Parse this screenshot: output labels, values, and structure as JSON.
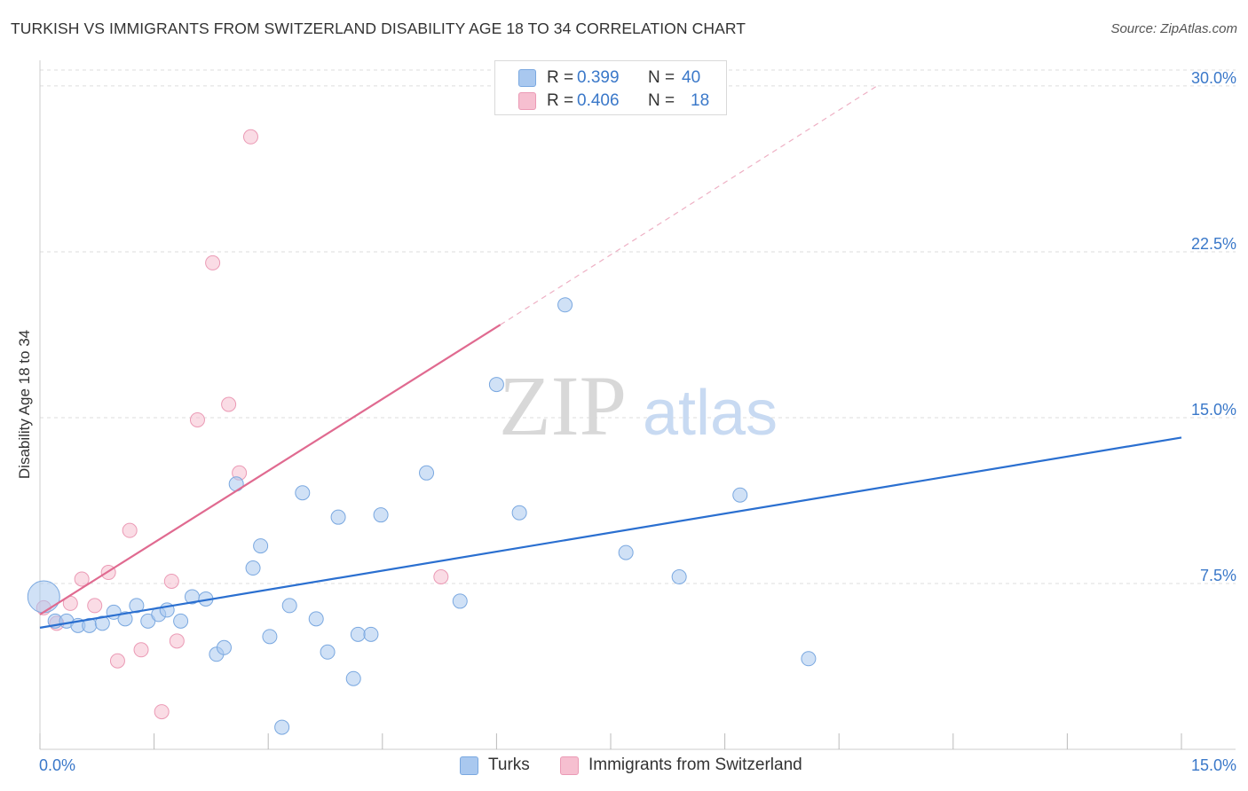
{
  "title": "TURKISH VS IMMIGRANTS FROM SWITZERLAND DISABILITY AGE 18 TO 34 CORRELATION CHART",
  "source": "Source: ZipAtlas.com",
  "watermark": {
    "zip": "ZIP",
    "atlas": "atlas"
  },
  "legend": {
    "rows": [
      {
        "r_label": "R =",
        "r_value": "0.399",
        "n_label": "N =",
        "n_value": "40"
      },
      {
        "r_label": "R =",
        "r_value": "0.406",
        "n_label": "N =",
        "n_value": "18"
      }
    ]
  },
  "bottom_legend": {
    "turks": "Turks",
    "swiss": "Immigrants from Switzerland"
  },
  "colors": {
    "turks_fill": "#a9c8ef",
    "turks_stroke": "#7aa8e0",
    "turks_line": "#2a6fd0",
    "swiss_fill": "#f6bfd0",
    "swiss_stroke": "#eb9ab5",
    "swiss_line": "#e06a90",
    "tick_label": "#3a78c9",
    "grid": "#dddddd"
  },
  "chart_data": {
    "type": "scatter",
    "title": "TURKISH VS IMMIGRANTS FROM SWITZERLAND DISABILITY AGE 18 TO 34 CORRELATION CHART",
    "xlabel": "",
    "ylabel": "Disability Age 18 to 34",
    "xlim": [
      0,
      15
    ],
    "ylim": [
      0,
      31
    ],
    "x_tick_labels": [
      "0.0%",
      "15.0%"
    ],
    "y_ticks": [
      {
        "value": 7.5,
        "label": "7.5%"
      },
      {
        "value": 15.0,
        "label": "15.0%"
      },
      {
        "value": 22.5,
        "label": "22.5%"
      },
      {
        "value": 30.0,
        "label": "30.0%"
      }
    ],
    "series": [
      {
        "name": "Turks",
        "r": 0.399,
        "n": 40,
        "points": [
          {
            "x": 0.05,
            "y": 6.9,
            "size": "large"
          },
          {
            "x": 0.2,
            "y": 5.8
          },
          {
            "x": 0.35,
            "y": 5.8
          },
          {
            "x": 0.5,
            "y": 5.6
          },
          {
            "x": 0.65,
            "y": 5.6
          },
          {
            "x": 0.82,
            "y": 5.7
          },
          {
            "x": 0.97,
            "y": 6.2
          },
          {
            "x": 1.12,
            "y": 5.9
          },
          {
            "x": 1.27,
            "y": 6.5
          },
          {
            "x": 1.42,
            "y": 5.8
          },
          {
            "x": 1.56,
            "y": 6.1
          },
          {
            "x": 1.67,
            "y": 6.3
          },
          {
            "x": 1.85,
            "y": 5.8
          },
          {
            "x": 2.0,
            "y": 6.9
          },
          {
            "x": 2.18,
            "y": 6.8
          },
          {
            "x": 2.32,
            "y": 4.3
          },
          {
            "x": 2.42,
            "y": 4.6
          },
          {
            "x": 2.58,
            "y": 12.0
          },
          {
            "x": 2.8,
            "y": 8.2
          },
          {
            "x": 2.9,
            "y": 9.2
          },
          {
            "x": 3.02,
            "y": 5.1
          },
          {
            "x": 3.18,
            "y": 1.0
          },
          {
            "x": 3.28,
            "y": 6.5
          },
          {
            "x": 3.45,
            "y": 11.6
          },
          {
            "x": 3.63,
            "y": 5.9
          },
          {
            "x": 3.78,
            "y": 4.4
          },
          {
            "x": 3.92,
            "y": 10.5
          },
          {
            "x": 4.12,
            "y": 3.2
          },
          {
            "x": 4.18,
            "y": 5.2
          },
          {
            "x": 4.35,
            "y": 5.2
          },
          {
            "x": 4.48,
            "y": 10.6
          },
          {
            "x": 5.08,
            "y": 12.5
          },
          {
            "x": 5.52,
            "y": 6.7
          },
          {
            "x": 6.0,
            "y": 16.5
          },
          {
            "x": 6.3,
            "y": 10.7
          },
          {
            "x": 6.9,
            "y": 20.1
          },
          {
            "x": 7.7,
            "y": 8.9
          },
          {
            "x": 8.4,
            "y": 7.8
          },
          {
            "x": 9.2,
            "y": 11.5
          },
          {
            "x": 10.1,
            "y": 4.1
          }
        ],
        "trend": {
          "x0": 0.0,
          "y0": 5.5,
          "x1": 15.0,
          "y1": 14.1
        }
      },
      {
        "name": "Immigrants from Switzerland",
        "r": 0.406,
        "n": 18,
        "points": [
          {
            "x": 0.05,
            "y": 6.4
          },
          {
            "x": 0.22,
            "y": 5.7
          },
          {
            "x": 0.4,
            "y": 6.6
          },
          {
            "x": 0.55,
            "y": 7.7
          },
          {
            "x": 0.72,
            "y": 6.5
          },
          {
            "x": 0.9,
            "y": 8.0
          },
          {
            "x": 1.02,
            "y": 4.0
          },
          {
            "x": 1.18,
            "y": 9.9
          },
          {
            "x": 1.33,
            "y": 4.5
          },
          {
            "x": 1.6,
            "y": 1.7
          },
          {
            "x": 1.73,
            "y": 7.6
          },
          {
            "x": 1.8,
            "y": 4.9
          },
          {
            "x": 2.07,
            "y": 14.9
          },
          {
            "x": 2.27,
            "y": 22.0
          },
          {
            "x": 2.48,
            "y": 15.6
          },
          {
            "x": 2.62,
            "y": 12.5
          },
          {
            "x": 2.77,
            "y": 27.7
          },
          {
            "x": 5.27,
            "y": 7.8
          }
        ],
        "trend": {
          "x0": 0.0,
          "y0": 6.1,
          "x1": 6.05,
          "y1": 19.2
        },
        "trend_extension": {
          "x0": 6.05,
          "y0": 19.2,
          "x1": 11.0,
          "y1": 30.0
        }
      }
    ]
  }
}
